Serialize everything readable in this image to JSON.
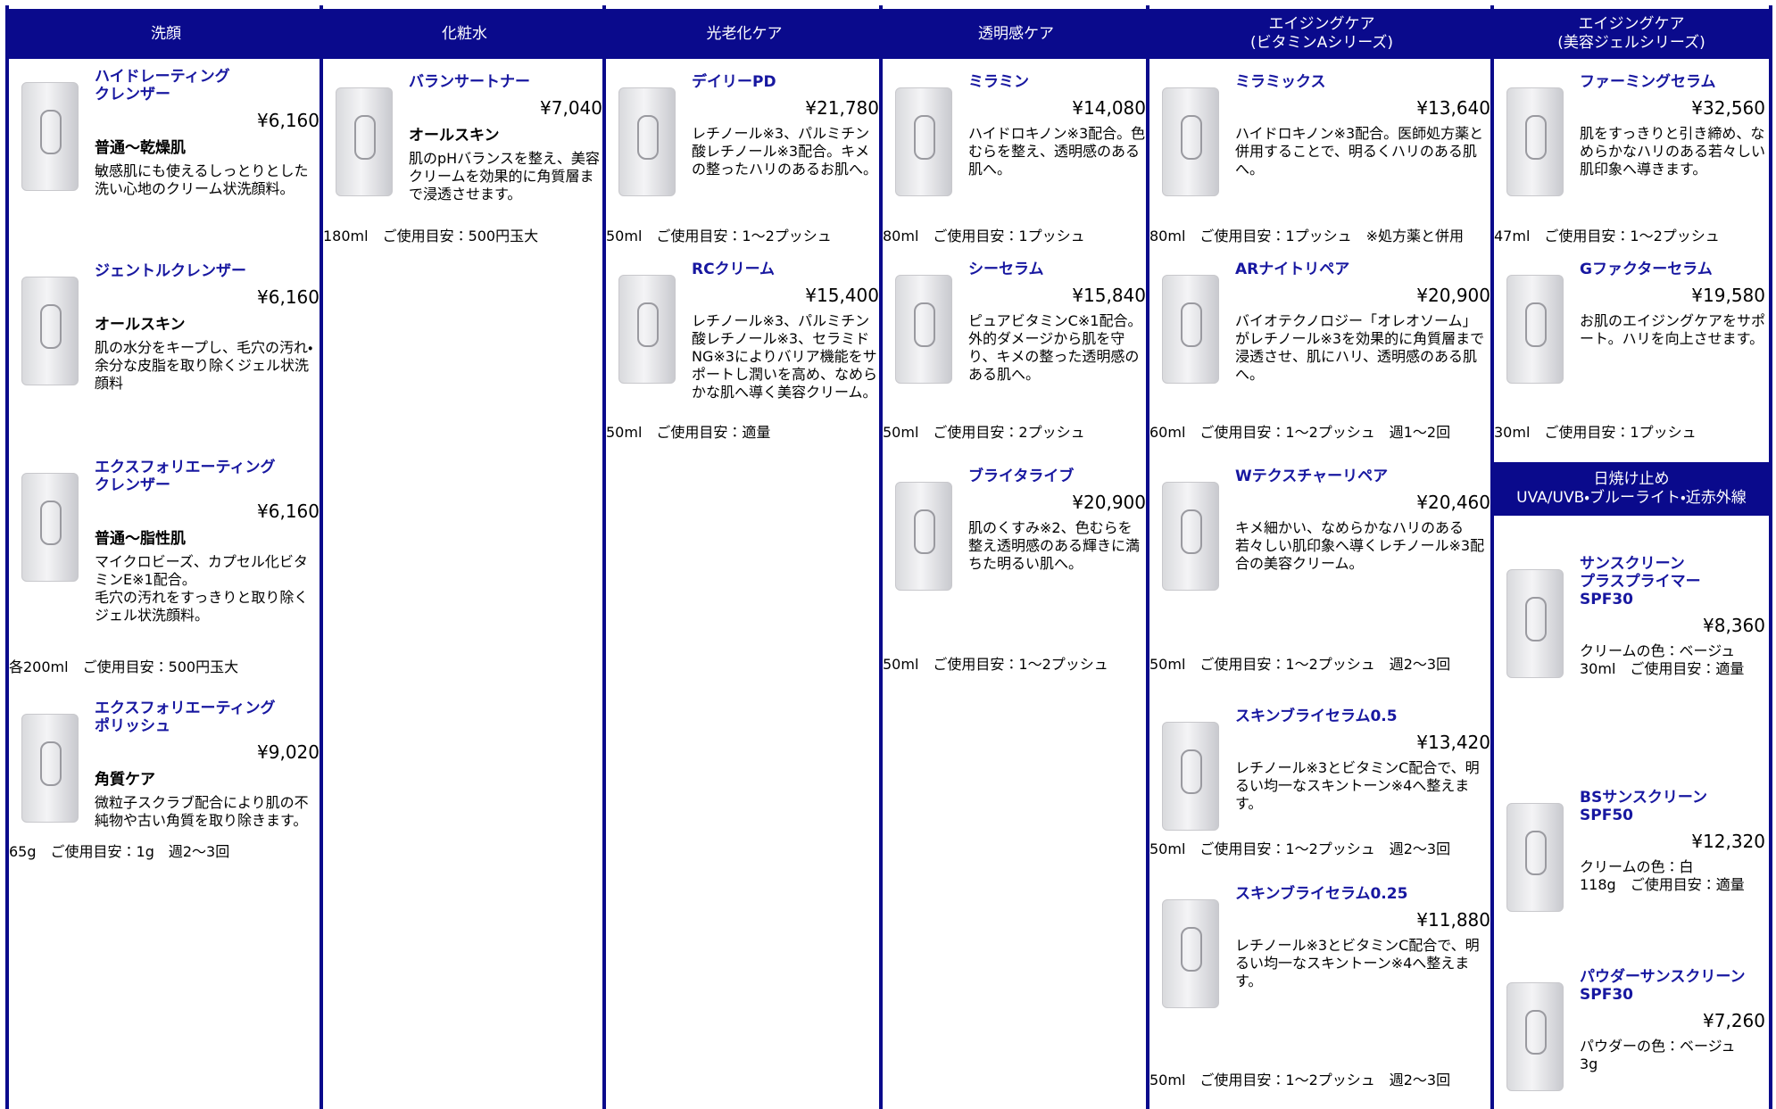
{
  "columns": [
    {
      "sections": [
        {
          "header": "洗顔",
          "products": [
            {
              "name": "ハイドレーティング\nクレンザー",
              "price": "¥6,160",
              "subtitle": "普通～乾燥肌",
              "description": "敏感肌にも使えるしっとりとした洗い心地のクリーム状洗顔料。"
            },
            {
              "name": "ジェントルクレンザー",
              "price": "¥6,160",
              "subtitle": "オールスキン",
              "description": "肌の水分をキープし、毛穴の汚れ・余分な皮脂を取り除くジェル状洗顔料"
            },
            {
              "name": "エクスフォリエーティング\nクレンザー",
              "price": "¥6,160",
              "subtitle": "普通～脂性肌",
              "description": "マイクロビーズ、カプセル化ビタミンE※1配合。\n毛穴の汚れをすっきりと取り除くジェル状洗顔料。",
              "spec": "各200ml　ご使用目安：500円玉大"
            },
            {
              "name": "エクスフォリエーティング\nポリッシュ",
              "price": "¥9,020",
              "subtitle": "角質ケア",
              "description": "微粒子スクラブ配合により肌の不純物や古い角質を取り除きます。",
              "spec": "65g　ご使用目安：1g　週2～3回"
            }
          ]
        }
      ]
    },
    {
      "sections": [
        {
          "header": "化粧水",
          "products": [
            {
              "name": "バランサートナー",
              "price": "¥7,040",
              "subtitle": "オールスキン",
              "description": "肌のpHバランスを整え、美容クリームを効果的に角質層まで浸透させます。",
              "spec": "180ml　ご使用目安：500円玉大"
            }
          ]
        }
      ]
    },
    {
      "sections": [
        {
          "header": "光老化ケア",
          "products": [
            {
              "name": "デイリーPD",
              "price": "¥21,780",
              "description": "レチノール※3、パルミチン酸レチノール※3配合。キメの整ったハリのあるお肌へ。",
              "spec": "50ml　ご使用目安：1～2プッシュ"
            },
            {
              "name": "RCクリーム",
              "price": "¥15,400",
              "description": "レチノール※3、パルミチン酸レチノール※3、セラミドNG※3によりバリア機能をサポートし潤いを高め、なめらかな肌へ導く美容クリーム。",
              "spec": "50ml　ご使用目安：適量"
            }
          ]
        }
      ]
    },
    {
      "sections": [
        {
          "header": "透明感ケア",
          "products": [
            {
              "name": "ミラミン",
              "price": "¥14,080",
              "description": "ハイドロキノン※3配合。色むらを整え、透明感のある肌へ。",
              "spec": "80ml　ご使用目安：1プッシュ"
            },
            {
              "name": "シーセラム",
              "price": "¥15,840",
              "description": "ピュアビタミンC※1配合。外的ダメージから肌を守り、キメの整った透明感のある肌へ。",
              "spec": "50ml　ご使用目安：2プッシュ"
            },
            {
              "name": "ブライタライブ",
              "price": "¥20,900",
              "description": "肌のくすみ※2、色むらを整え透明感のある輝きに満ちた明るい肌へ。",
              "spec": "50ml　ご使用目安：1～2プッシュ"
            }
          ]
        }
      ]
    },
    {
      "sections": [
        {
          "header": "エイジングケア\n(ビタミンAシリーズ)",
          "products": [
            {
              "name": "ミラミックス",
              "price": "¥13,640",
              "description": "ハイドロキノン※3配合。医師処方薬と併用することで、明るくハリのある肌へ。",
              "spec": "80ml　ご使用目安：1プッシュ　※処方薬と併用"
            },
            {
              "name": "ARナイトリペア",
              "price": "¥20,900",
              "description": "バイオテクノロジー「オレオソーム」がレチノール※3を効果的に角質層まで浸透させ、肌にハリ、透明感のある肌へ。",
              "spec": "60ml　ご使用目安：1～2プッシュ　週1～2回"
            },
            {
              "name": "Wテクスチャーリペア",
              "price": "¥20,460",
              "description": "キメ細かい、なめらかなハリのある若々しい肌印象へ導くレチノール※3配合の美容クリーム。",
              "spec": "50ml　ご使用目安：1～2プッシュ　週2～3回"
            },
            {
              "name": "スキンブライセラム0.5",
              "price": "¥13,420",
              "description": "レチノール※3とビタミンC配合で、明るい均一なスキントーン※4へ整えます。",
              "spec": "50ml　ご使用目安：1～2プッシュ　週2～3回"
            },
            {
              "name": "スキンブライセラム0.25",
              "price": "¥11,880",
              "description": "レチノール※3とビタミンC配合で、明るい均一なスキントーン※4へ整えます。",
              "spec": "50ml　ご使用目安：1～2プッシュ　週2～3回"
            }
          ]
        }
      ]
    },
    {
      "sections": [
        {
          "header": "エイジングケア\n(美容ジェルシリーズ)",
          "products": [
            {
              "name": "ファーミングセラム",
              "price": "¥32,560",
              "description": "肌をすっきりと引き締め、なめらかなハリのある若々しい肌印象へ導きます。",
              "spec": "47ml　ご使用目安：1～2プッシュ"
            },
            {
              "name": "Gファクターセラム",
              "price": "¥19,580",
              "description": "お肌のエイジングケアをサポート。ハリを向上させます。",
              "spec": "30ml　ご使用目安：1プッシュ"
            }
          ]
        },
        {
          "header": "日焼け止め\nUVA/UVB・ブルーライト・近赤外線",
          "products": [
            {
              "name": "サンスクリーン\nプラスプライマー　SPF30",
              "price": "¥8,360",
              "description": "クリームの色：ベージュ\n30ml　ご使用目安：適量"
            },
            {
              "name": "BSサンスクリーン　SPF50",
              "price": "¥12,320",
              "description": "クリームの色：白\n118g　ご使用目安：適量"
            },
            {
              "name": "パウダーサンスクリーン\nSPF30",
              "price": "¥7,260",
              "description": "パウダーの色：ベージュ\n3g"
            }
          ]
        }
      ]
    }
  ]
}
